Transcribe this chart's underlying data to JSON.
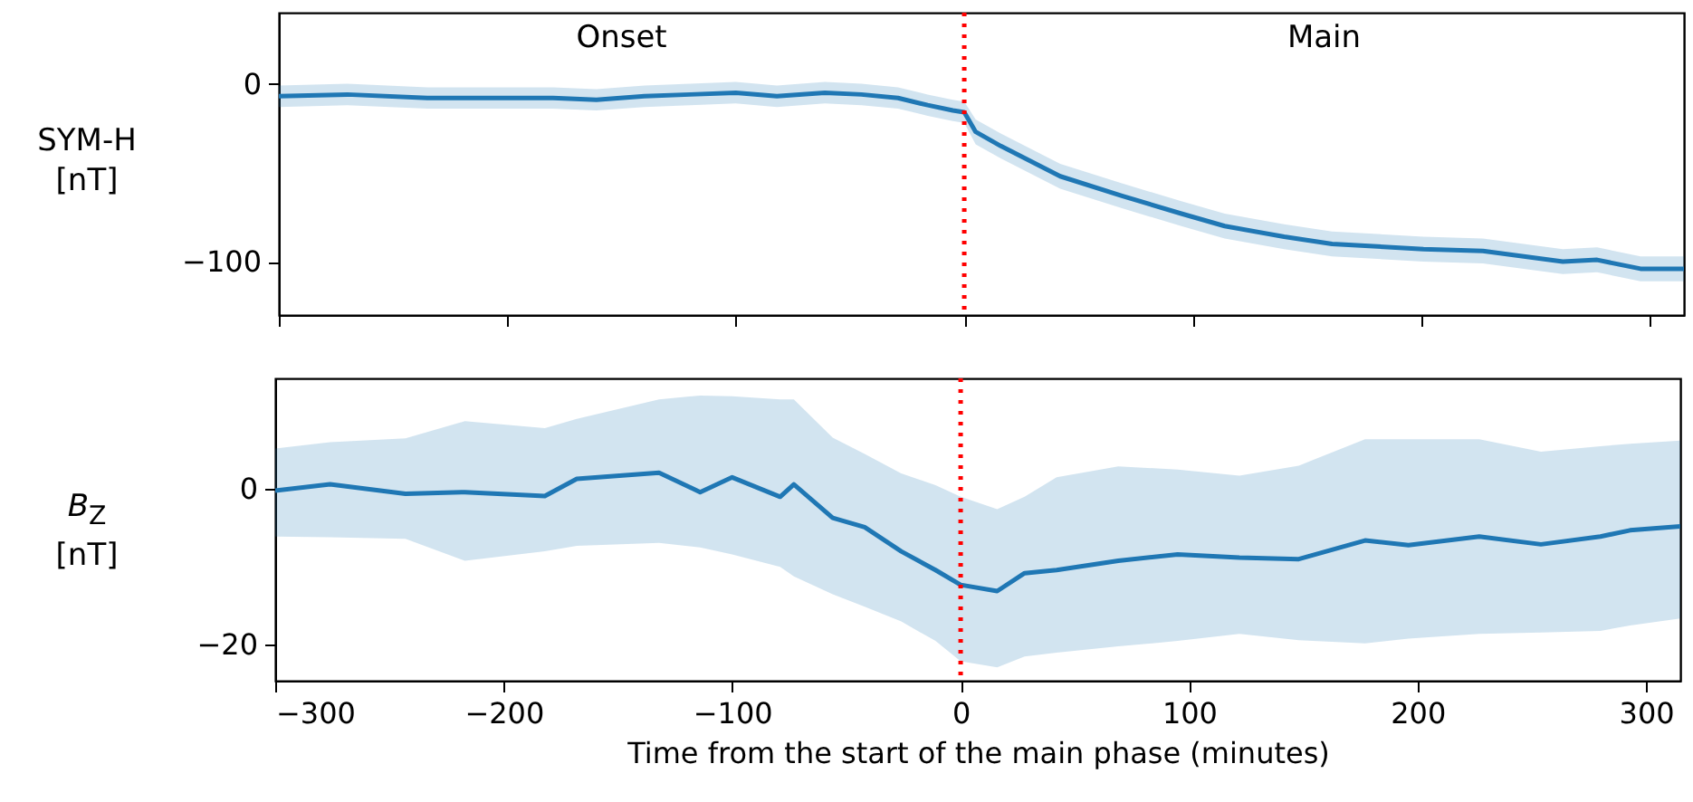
{
  "chart_data": [
    {
      "type": "line",
      "ylabel": "SYM-H [nT]",
      "xlim": [
        -300,
        315
      ],
      "ylim": [
        -130,
        40
      ],
      "xticks": [
        -300,
        -200,
        -100,
        0,
        100,
        200,
        300
      ],
      "yticks": [
        -100,
        0
      ],
      "tick_labels": "y",
      "annotations": [
        "Onset",
        "Main"
      ],
      "ref_lines": [
        {
          "axis": "x",
          "value": 0,
          "color": "#ff0000",
          "line_style": "dotted"
        }
      ],
      "series": [
        {
          "color": "#1f77b4",
          "x": [
            -300,
            -270,
            -235,
            -214,
            -180,
            -161,
            -140,
            -120,
            -100,
            -82,
            -61,
            -45,
            -29,
            -16,
            -5,
            0,
            5,
            16,
            42,
            69,
            95,
            114,
            140,
            161,
            201,
            227,
            262,
            277,
            296,
            315
          ],
          "values": [
            -7,
            -6,
            -8,
            -8,
            -8,
            -9,
            -7,
            -6,
            -5,
            -7,
            -5,
            -6,
            -8,
            -12,
            -15,
            -16,
            -27,
            -35,
            -52,
            -63,
            -73,
            -80,
            -86,
            -90,
            -93,
            -94,
            -100,
            -99,
            -104,
            -104
          ],
          "lower": [
            -13,
            -12,
            -14,
            -14,
            -14,
            -15,
            -13,
            -12,
            -11,
            -13,
            -11,
            -12,
            -14,
            -18,
            -21,
            -22,
            -34,
            -42,
            -59,
            -70,
            -80,
            -87,
            -93,
            -97,
            -100,
            -101,
            -107,
            -106,
            -111,
            -111
          ],
          "upper": [
            -1,
            0,
            -2,
            -2,
            -2,
            -3,
            -1,
            0,
            1,
            -1,
            1,
            0,
            -2,
            -6,
            -9,
            -10,
            -20,
            -28,
            -45,
            -56,
            -66,
            -73,
            -79,
            -83,
            -86,
            -87,
            -93,
            -92,
            -97,
            -97
          ]
        }
      ]
    },
    {
      "type": "line",
      "ylabel": "B$_{Z}$ [nT]",
      "xlabel": "Time from the start of the main phase (minutes)",
      "xlim": [
        -300,
        315
      ],
      "ylim": [
        -24.6,
        14.2
      ],
      "xticks": [
        -300,
        -200,
        -100,
        0,
        100,
        200,
        300
      ],
      "yticks": [
        -20,
        0
      ],
      "ref_lines": [
        {
          "axis": "x",
          "value": 0,
          "color": "#ff0000",
          "line_style": "dotted"
        }
      ],
      "series": [
        {
          "color": "#1f77b4",
          "x": [
            -300,
            -276,
            -243,
            -217,
            -182,
            -168,
            -132,
            -114,
            -100,
            -79,
            -73,
            -56,
            -42,
            -26,
            -11,
            0,
            16,
            28,
            42,
            69,
            95,
            122,
            148,
            177,
            196,
            227,
            254,
            280,
            293,
            315
          ],
          "values": [
            -0.2,
            0.6,
            -0.6,
            -0.4,
            -0.9,
            1.3,
            2.1,
            -0.4,
            1.5,
            -1.0,
            0.6,
            -3.7,
            -4.9,
            -8.0,
            -10.4,
            -12.3,
            -13.1,
            -10.8,
            -10.4,
            -9.2,
            -8.4,
            -8.8,
            -9.0,
            -6.6,
            -7.2,
            -6.1,
            -7.1,
            -6.1,
            -5.3,
            -4.8
          ],
          "lower": [
            -6.1,
            -6.2,
            -6.4,
            -9.2,
            -8,
            -7.3,
            -6.9,
            -7.5,
            -8.4,
            -10,
            -11.2,
            -13.5,
            -15.1,
            -17,
            -19.5,
            -22.1,
            -22.9,
            -21.5,
            -21,
            -20.2,
            -19.5,
            -18.6,
            -19.4,
            -19.8,
            -19.2,
            -18.6,
            -18.4,
            -18.2,
            -17.5,
            -16.6
          ],
          "upper": [
            5.2,
            6.0,
            6.5,
            8.7,
            7.8,
            9,
            11.5,
            12,
            11.9,
            11.5,
            11.5,
            6.6,
            4.5,
            2,
            0.5,
            -1,
            -2.6,
            -1,
            1.5,
            2.9,
            2.5,
            1.7,
            3,
            6.4,
            6.4,
            6.4,
            4.8,
            5.5,
            5.8,
            6.2
          ]
        }
      ]
    }
  ]
}
